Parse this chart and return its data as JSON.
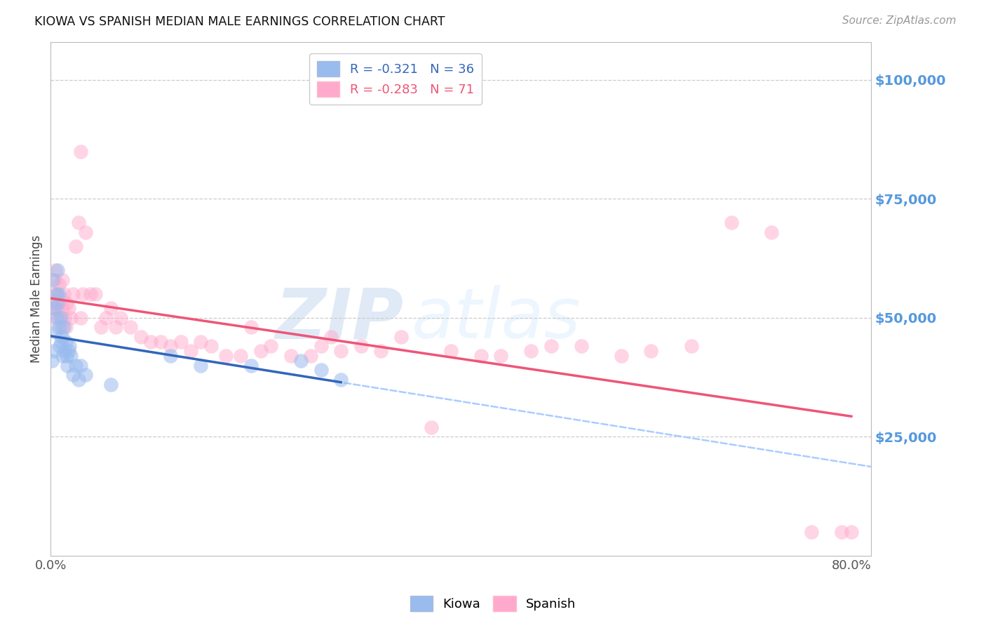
{
  "title": "KIOWA VS SPANISH MEDIAN MALE EARNINGS CORRELATION CHART",
  "source": "Source: ZipAtlas.com",
  "ylabel": "Median Male Earnings",
  "ytick_labels": [
    "$25,000",
    "$50,000",
    "$75,000",
    "$100,000"
  ],
  "ytick_values": [
    25000,
    50000,
    75000,
    100000
  ],
  "ylim": [
    0,
    108000
  ],
  "xlim": [
    0.0,
    0.82
  ],
  "watermark_text": "ZIP",
  "watermark_text2": "atlas",
  "legend_entries": [
    {
      "label": "R = -0.321   N = 36",
      "color": "#99bbee"
    },
    {
      "label": "R = -0.283   N = 71",
      "color": "#ffaacc"
    }
  ],
  "legend_names": [
    "Kiowa",
    "Spanish"
  ],
  "kiowa_color": "#99bbee",
  "spanish_color": "#ffaacc",
  "kiowa_line_color": "#3366bb",
  "spanish_line_color": "#ee5577",
  "dashed_line_color": "#aaccff",
  "kiowa_x": [
    0.001,
    0.002,
    0.003,
    0.004,
    0.005,
    0.006,
    0.006,
    0.007,
    0.007,
    0.008,
    0.008,
    0.009,
    0.01,
    0.01,
    0.011,
    0.012,
    0.013,
    0.014,
    0.015,
    0.016,
    0.017,
    0.018,
    0.019,
    0.02,
    0.022,
    0.025,
    0.028,
    0.03,
    0.035,
    0.06,
    0.12,
    0.15,
    0.2,
    0.25,
    0.27,
    0.29
  ],
  "kiowa_y": [
    41000,
    58000,
    43000,
    52000,
    47000,
    55000,
    50000,
    53000,
    60000,
    48000,
    55000,
    44000,
    50000,
    45000,
    46000,
    42000,
    48000,
    43000,
    45000,
    42000,
    40000,
    43000,
    44000,
    42000,
    38000,
    40000,
    37000,
    40000,
    38000,
    36000,
    42000,
    40000,
    40000,
    41000,
    39000,
    37000
  ],
  "spanish_x": [
    0.001,
    0.002,
    0.003,
    0.004,
    0.004,
    0.005,
    0.006,
    0.007,
    0.008,
    0.009,
    0.01,
    0.011,
    0.012,
    0.012,
    0.013,
    0.014,
    0.015,
    0.016,
    0.018,
    0.02,
    0.022,
    0.025,
    0.028,
    0.03,
    0.03,
    0.032,
    0.035,
    0.04,
    0.045,
    0.05,
    0.055,
    0.06,
    0.065,
    0.07,
    0.08,
    0.09,
    0.1,
    0.11,
    0.12,
    0.13,
    0.14,
    0.15,
    0.16,
    0.175,
    0.19,
    0.2,
    0.21,
    0.22,
    0.24,
    0.26,
    0.27,
    0.28,
    0.29,
    0.31,
    0.33,
    0.35,
    0.38,
    0.4,
    0.43,
    0.45,
    0.48,
    0.5,
    0.53,
    0.57,
    0.6,
    0.64,
    0.68,
    0.72,
    0.76,
    0.79,
    0.8
  ],
  "spanish_y": [
    50000,
    52000,
    55000,
    58000,
    53000,
    60000,
    55000,
    52000,
    57000,
    50000,
    54000,
    48000,
    52000,
    58000,
    55000,
    50000,
    48000,
    53000,
    52000,
    50000,
    55000,
    65000,
    70000,
    85000,
    50000,
    55000,
    68000,
    55000,
    55000,
    48000,
    50000,
    52000,
    48000,
    50000,
    48000,
    46000,
    45000,
    45000,
    44000,
    45000,
    43000,
    45000,
    44000,
    42000,
    42000,
    48000,
    43000,
    44000,
    42000,
    42000,
    44000,
    46000,
    43000,
    44000,
    43000,
    46000,
    27000,
    43000,
    42000,
    42000,
    43000,
    44000,
    44000,
    42000,
    43000,
    44000,
    70000,
    68000,
    5000,
    5000,
    5000
  ],
  "background_color": "#ffffff",
  "grid_color": "#cccccc"
}
